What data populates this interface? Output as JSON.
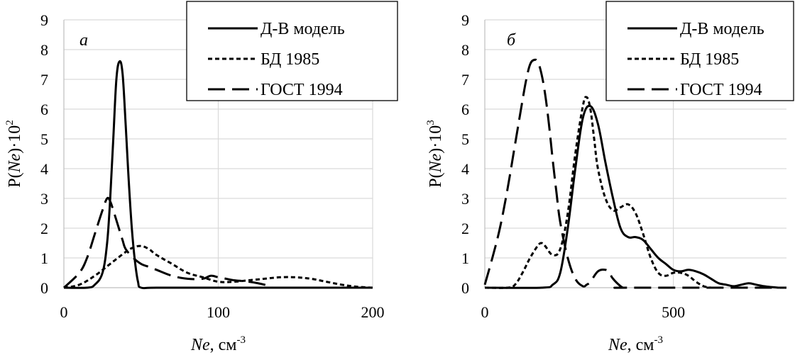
{
  "chart_data": [
    {
      "type": "line",
      "panel_label": "а",
      "xlabel_italic": "Ne",
      "xlabel_rest": ", см",
      "xlabel_sup": "-3",
      "ylabel_pre": "P(",
      "ylabel_italic": "Ne",
      "ylabel_post": ")·10",
      "ylabel_sup": "2",
      "xlim": [
        0,
        200
      ],
      "ylim": [
        0,
        9
      ],
      "xticks": [
        "0",
        "100",
        "200"
      ],
      "yticks": [
        "0",
        "1",
        "2",
        "3",
        "4",
        "5",
        "6",
        "7",
        "8",
        "9"
      ],
      "grid": true,
      "legend_position": "top-right",
      "series": [
        {
          "name": "Д-В модель",
          "style": "solid",
          "x": [
            0,
            15,
            20,
            25,
            28,
            30,
            32,
            34,
            36,
            38,
            40,
            42,
            44,
            46,
            48,
            50,
            60,
            100,
            200
          ],
          "y": [
            0,
            0,
            0.1,
            0.5,
            1.5,
            3.0,
            5.0,
            7.0,
            7.6,
            7.2,
            5.5,
            3.6,
            2.0,
            0.9,
            0.2,
            0,
            0,
            0,
            0
          ]
        },
        {
          "name": "БД 1985",
          "style": "dotted",
          "x": [
            0,
            10,
            20,
            30,
            40,
            45,
            50,
            55,
            60,
            70,
            80,
            90,
            100,
            110,
            120,
            130,
            140,
            150,
            160,
            170,
            180,
            190,
            200
          ],
          "y": [
            0,
            0.1,
            0.4,
            0.8,
            1.2,
            1.35,
            1.4,
            1.3,
            1.1,
            0.8,
            0.5,
            0.35,
            0.2,
            0.2,
            0.25,
            0.3,
            0.35,
            0.35,
            0.3,
            0.2,
            0.1,
            0.03,
            0
          ]
        },
        {
          "name": "ГОСТ 1994",
          "style": "dashed",
          "x": [
            0,
            10,
            15,
            20,
            25,
            28,
            30,
            32,
            35,
            38,
            40,
            45,
            50,
            55,
            60,
            70,
            80,
            90,
            95,
            100,
            105,
            110,
            120,
            130,
            135
          ],
          "y": [
            0,
            0.5,
            1.0,
            1.8,
            2.6,
            3.0,
            2.9,
            2.6,
            2.1,
            1.6,
            1.3,
            1.0,
            0.8,
            0.7,
            0.6,
            0.4,
            0.3,
            0.3,
            0.4,
            0.35,
            0.3,
            0.25,
            0.2,
            0.1,
            0
          ]
        }
      ]
    },
    {
      "type": "line",
      "panel_label": "б",
      "xlabel_italic": "Ne",
      "xlabel_rest": ", см",
      "xlabel_sup": "-3",
      "ylabel_pre": "P(",
      "ylabel_italic": "Ne",
      "ylabel_post": ")·10",
      "ylabel_sup": "3",
      "xlim": [
        0,
        800
      ],
      "ylim": [
        0,
        9
      ],
      "xticks": [
        "0",
        "500"
      ],
      "yticks": [
        "0",
        "1",
        "2",
        "3",
        "4",
        "5",
        "6",
        "7",
        "8",
        "9"
      ],
      "grid": true,
      "legend_position": "top-right",
      "series": [
        {
          "name": "Д-В модель",
          "style": "solid",
          "x": [
            0,
            150,
            180,
            200,
            220,
            240,
            260,
            280,
            300,
            320,
            340,
            360,
            380,
            400,
            420,
            440,
            460,
            480,
            500,
            520,
            540,
            560,
            580,
            600,
            620,
            640,
            660,
            680,
            700,
            720,
            740,
            760,
            780
          ],
          "y": [
            0,
            0,
            0.1,
            0.5,
            2.0,
            4.0,
            5.7,
            6.1,
            5.5,
            4.2,
            3.0,
            2.0,
            1.7,
            1.7,
            1.6,
            1.3,
            1.0,
            0.8,
            0.6,
            0.55,
            0.6,
            0.55,
            0.45,
            0.3,
            0.15,
            0.1,
            0.05,
            0.1,
            0.15,
            0.1,
            0.05,
            0.02,
            0
          ]
        },
        {
          "name": "БД 1985",
          "style": "dotted",
          "x": [
            0,
            60,
            80,
            100,
            120,
            140,
            150,
            160,
            180,
            200,
            220,
            240,
            260,
            270,
            280,
            290,
            300,
            320,
            340,
            360,
            380,
            400,
            420,
            440,
            460,
            480,
            500,
            520,
            540,
            560,
            580,
            600
          ],
          "y": [
            0,
            0,
            0.1,
            0.5,
            1.0,
            1.4,
            1.5,
            1.4,
            1.1,
            1.3,
            2.5,
            4.5,
            6.1,
            6.4,
            6.0,
            5.0,
            4.0,
            3.0,
            2.6,
            2.7,
            2.8,
            2.5,
            1.8,
            1.0,
            0.5,
            0.4,
            0.5,
            0.5,
            0.4,
            0.2,
            0.05,
            0
          ]
        },
        {
          "name": "ГОСТ 1994",
          "style": "dashed",
          "x": [
            0,
            20,
            40,
            60,
            80,
            100,
            110,
            120,
            130,
            140,
            150,
            160,
            170,
            180,
            190,
            200,
            220,
            240,
            260,
            270,
            280,
            300,
            320,
            330,
            340,
            360,
            370,
            380,
            800
          ],
          "y": [
            0.1,
            1.0,
            2.0,
            3.3,
            4.8,
            6.3,
            7.0,
            7.5,
            7.65,
            7.6,
            7.2,
            6.5,
            5.5,
            4.3,
            3.2,
            2.2,
            1.0,
            0.3,
            0.05,
            0.1,
            0.2,
            0.55,
            0.6,
            0.5,
            0.3,
            0.05,
            0,
            0,
            0
          ]
        }
      ]
    }
  ]
}
